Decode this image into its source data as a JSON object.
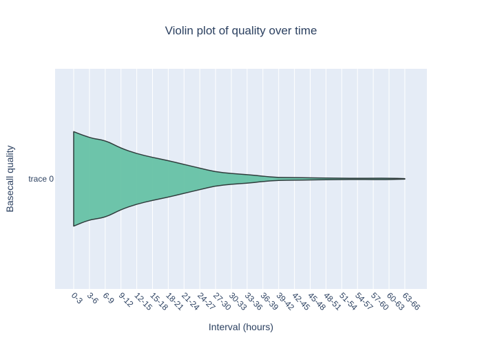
{
  "chart_data": {
    "type": "violin",
    "title": "Violin plot of quality over time",
    "xlabel": "Interval (hours)",
    "ylabel": "Basecall quality",
    "orientation": "horizontal",
    "grid": true,
    "categories": [
      "0-3",
      "3-6",
      "6-9",
      "9-12",
      "12-15",
      "15-18",
      "18-21",
      "21-24",
      "24-27",
      "27-30",
      "30-33",
      "33-36",
      "36-39",
      "39-42",
      "42-45",
      "45-48",
      "48-51",
      "51-54",
      "54-57",
      "57-60",
      "60-63",
      "63-66"
    ],
    "series": [
      {
        "name": "trace 0",
        "half_width_by_category": [
          0.88,
          0.76,
          0.72,
          0.57,
          0.47,
          0.4,
          0.34,
          0.27,
          0.2,
          0.13,
          0.1,
          0.08,
          0.05,
          0.025,
          0.025,
          0.02,
          0.015,
          0.013,
          0.01,
          0.013,
          0.013,
          0.005
        ],
        "color": "#66c2a5",
        "line_color": "#2f3b3b"
      }
    ]
  },
  "colors": {
    "plot_bg": "#e5ecf6",
    "grid": "#ffffff",
    "text": "#2a3f5f"
  }
}
